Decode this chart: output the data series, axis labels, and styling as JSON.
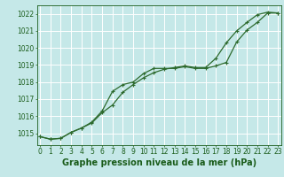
{
  "title": "Graphe pression niveau de la mer (hPa)",
  "xlabel_hours": [
    0,
    1,
    2,
    3,
    4,
    5,
    6,
    7,
    8,
    9,
    10,
    11,
    12,
    13,
    14,
    15,
    16,
    17,
    18,
    19,
    20,
    21,
    22,
    23
  ],
  "ylim": [
    1014.3,
    1022.5
  ],
  "yticks": [
    1015,
    1016,
    1017,
    1018,
    1019,
    1020,
    1021,
    1022
  ],
  "background_color": "#c5e8e8",
  "grid_color": "#ffffff",
  "line_color": "#2d6a2d",
  "marker_color": "#2d6a2d",
  "line1_x": [
    0,
    1,
    2,
    3,
    4,
    5,
    6,
    7,
    8,
    9,
    10,
    11,
    12,
    13,
    14,
    15,
    16,
    17,
    18,
    19,
    20,
    21,
    22,
    23
  ],
  "line1_y": [
    1014.8,
    1014.65,
    1014.7,
    1015.05,
    1015.3,
    1015.6,
    1016.2,
    1016.65,
    1017.4,
    1017.85,
    1018.25,
    1018.55,
    1018.75,
    1018.85,
    1018.95,
    1018.85,
    1018.85,
    1019.4,
    1020.3,
    1021.0,
    1021.5,
    1021.95,
    1022.1,
    1022.05
  ],
  "line2_x": [
    0,
    1,
    2,
    3,
    4,
    5,
    6,
    7,
    8,
    9,
    10,
    11,
    12,
    13,
    14,
    15,
    16,
    17,
    18,
    19,
    20,
    21,
    22,
    23
  ],
  "line2_y": [
    1014.8,
    1014.65,
    1014.7,
    1015.05,
    1015.3,
    1015.65,
    1016.3,
    1017.45,
    1017.85,
    1018.0,
    1018.5,
    1018.8,
    1018.8,
    1018.8,
    1018.9,
    1018.8,
    1018.8,
    1018.95,
    1019.15,
    1020.35,
    1021.05,
    1021.5,
    1022.05,
    1022.05
  ],
  "title_fontsize": 7,
  "tick_fontsize": 5.5,
  "title_color": "#1a5c1a",
  "tick_color": "#1a5c1a",
  "xlim": [
    -0.3,
    23.3
  ]
}
